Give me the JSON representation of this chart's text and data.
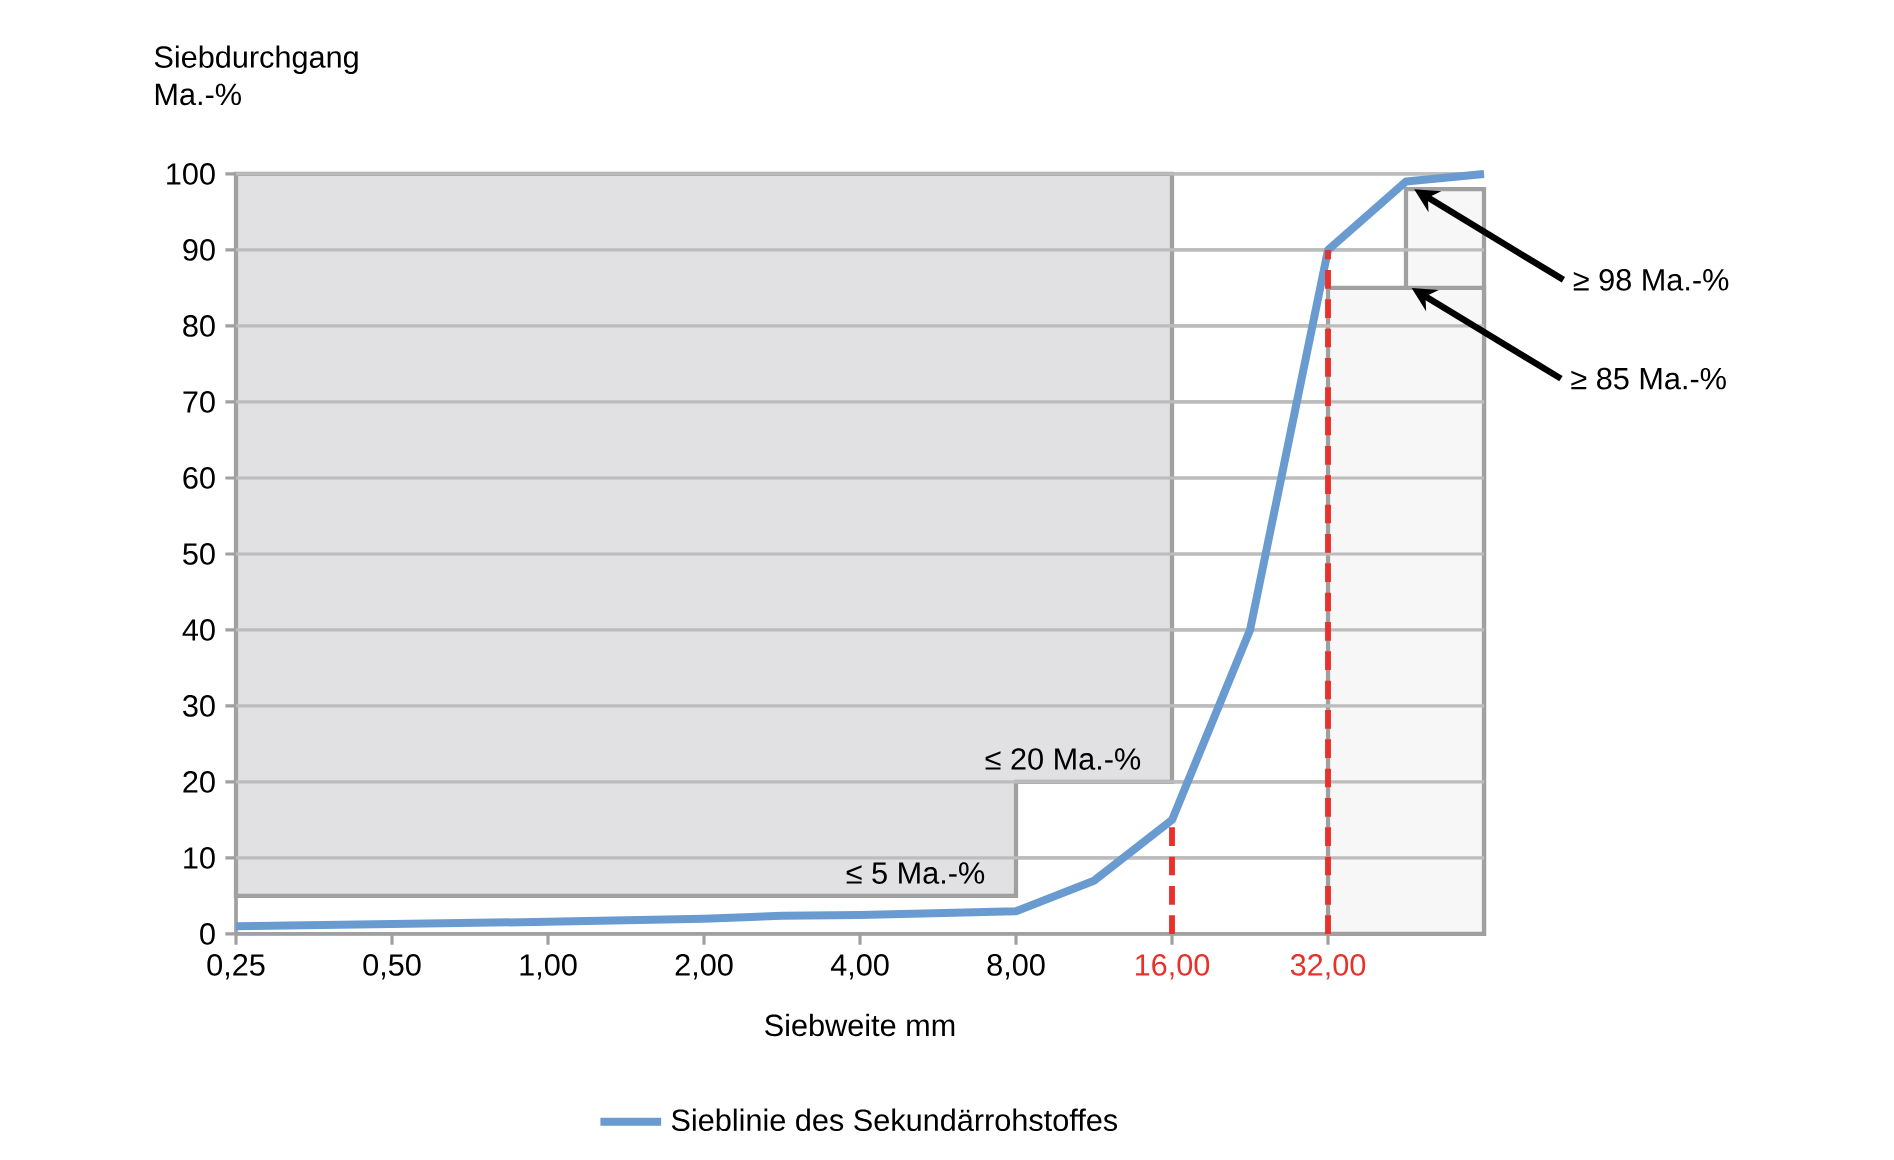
{
  "chart_data": {
    "type": "line",
    "ylabel": "Siebdurchgang Ma.-%",
    "xlabel": "Siebweite mm",
    "log": "x",
    "xlim": [
      0.25,
      64
    ],
    "ylim": [
      0,
      100
    ],
    "xticks": [
      {
        "value": 0.25,
        "label": "0,25"
      },
      {
        "value": 0.5,
        "label": "0,50"
      },
      {
        "value": 1,
        "label": "1,00"
      },
      {
        "value": 2,
        "label": "2,00"
      },
      {
        "value": 4,
        "label": "4,00"
      },
      {
        "value": 8,
        "label": "8,00"
      },
      {
        "value": 16,
        "label": null
      },
      {
        "value": 32,
        "label": null
      }
    ],
    "yticks": [
      0,
      10,
      20,
      30,
      40,
      50,
      60,
      70,
      80,
      90,
      100
    ],
    "grid": "y",
    "legend": "bottom",
    "series": [
      {
        "type": "area",
        "color": "#e1e1e3",
        "x": [
          0.25,
          8,
          8,
          16,
          16,
          0.25
        ],
        "values": [
          5,
          5,
          20,
          20,
          100,
          100
        ]
      },
      {
        "type": "area",
        "color": "#f7f7f7",
        "x": [
          45.25,
          64
        ],
        "values": [
          98,
          98
        ]
      },
      {
        "type": "area",
        "color": "#f7f7f7",
        "x": [
          32,
          64
        ],
        "values": [
          85,
          85
        ]
      },
      {
        "name": "Sieblinie des Sekundärrohstoffes",
        "color": "#6a9bd0",
        "x": [
          0.25,
          0.5,
          1,
          2,
          2.83,
          4,
          8,
          11.31,
          16,
          22.63,
          32,
          45.25,
          64
        ],
        "values": [
          1,
          1.3,
          1.6,
          2,
          2.4,
          2.5,
          3,
          7,
          15,
          40,
          90,
          99,
          100
        ]
      }
    ],
    "ref_lines": [
      {
        "axis": "x",
        "value": 16,
        "label": "16,00",
        "color": "#e8312a",
        "line_style": "dashed"
      },
      {
        "axis": "x",
        "value": 32,
        "label": "32,00",
        "color": "#e8312a",
        "line_style": "dashed"
      }
    ],
    "annotations": [
      "≤ 20 Ma.-%",
      "≤ 5 Ma.-%",
      {
        "text": "≥ 98 Ma.-%",
        "x": 46.9,
        "y": 98
      },
      {
        "text": "≥ 85 Ma.-%",
        "x": 46.4,
        "y": 85
      }
    ]
  }
}
